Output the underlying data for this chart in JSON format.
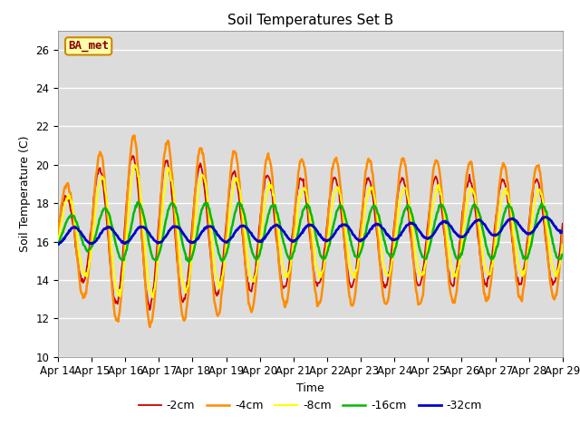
{
  "title": "Soil Temperatures Set B",
  "xlabel": "Time",
  "ylabel": "Soil Temperature (C)",
  "ylim": [
    10,
    27
  ],
  "yticks": [
    10,
    12,
    14,
    16,
    18,
    20,
    22,
    24,
    26
  ],
  "legend_label": "BA_met",
  "series_labels": [
    "-2cm",
    "-4cm",
    "-8cm",
    "-16cm",
    "-32cm"
  ],
  "series_colors": [
    "#cc0000",
    "#ff8c00",
    "#ffff00",
    "#00bb00",
    "#0000cc"
  ],
  "series_linewidths": [
    1.3,
    1.8,
    1.5,
    1.8,
    2.0
  ],
  "bg_color": "#dcdcdc",
  "xtick_labels": [
    "Apr 14",
    "Apr 15",
    "Apr 16",
    "Apr 17",
    "Apr 18",
    "Apr 19",
    "Apr 20",
    "Apr 21",
    "Apr 22",
    "Apr 23",
    "Apr 24",
    "Apr 25",
    "Apr 26",
    "Apr 27",
    "Apr 28",
    "Apr 29"
  ],
  "num_points": 721,
  "time_days": 15
}
